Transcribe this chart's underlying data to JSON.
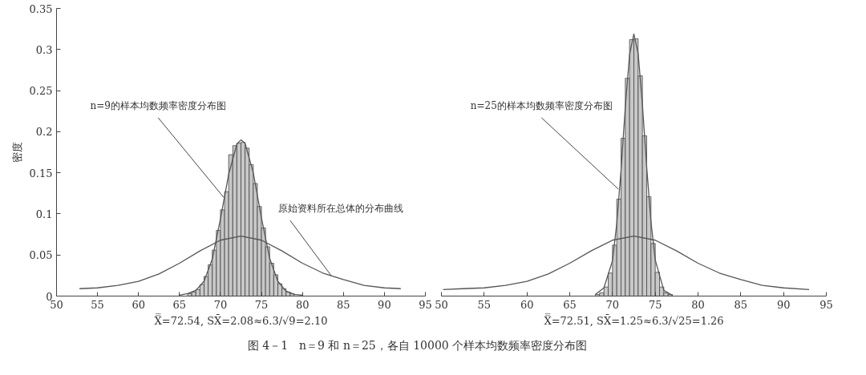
{
  "chart_data": [
    {
      "type": "histogram",
      "ylabel": "密度",
      "xlabel": "X̿=72.54, SX̄=2.08≈6.3/√9=2.10",
      "xlim": [
        50,
        95
      ],
      "xticks": [
        50,
        55,
        60,
        65,
        70,
        75,
        80,
        85,
        90,
        95
      ],
      "ylim": [
        0,
        0.35
      ],
      "yticks": [
        0,
        0.05,
        0.1,
        0.15,
        0.2,
        0.25,
        0.3,
        0.35
      ],
      "grid": false,
      "color": "#c8c8c8",
      "bins": [
        65,
        65.5,
        66,
        66.5,
        67,
        67.5,
        68,
        68.5,
        69,
        69.5,
        70,
        70.5,
        71,
        71.5,
        72,
        72.5,
        73,
        73.5,
        74,
        74.5,
        75,
        75.5,
        76,
        76.5,
        77,
        77.5,
        78,
        78.5,
        79,
        79.5,
        80
      ],
      "values": [
        null,
        null,
        0.003,
        0.005,
        0.008,
        0.014,
        0.024,
        0.038,
        0.056,
        0.08,
        0.105,
        0.127,
        0.172,
        0.183,
        0.186,
        0.187,
        0.18,
        0.16,
        0.137,
        0.109,
        0.083,
        0.06,
        0.04,
        0.026,
        0.015,
        0.009,
        0.005,
        0.003,
        null,
        null
      ],
      "series": [
        {
          "type": "line",
          "color": "#555555",
          "x": [
            65,
            66,
            67,
            68,
            69,
            70,
            71,
            72,
            72.5,
            73,
            74,
            75,
            76,
            77,
            78,
            79,
            80
          ],
          "values": [
            0.001,
            0.003,
            0.007,
            0.018,
            0.045,
            0.094,
            0.148,
            0.185,
            0.19,
            0.186,
            0.15,
            0.095,
            0.046,
            0.018,
            0.006,
            0.002,
            0.001
          ]
        },
        {
          "type": "line",
          "color": "#555555",
          "x": [
            52.8,
            55,
            57.5,
            60,
            62.5,
            65,
            67.5,
            70,
            72.5,
            75,
            77.5,
            80,
            82.5,
            85,
            87.5,
            90,
            92
          ],
          "values": [
            0.009,
            0.01,
            0.013,
            0.018,
            0.027,
            0.04,
            0.055,
            0.068,
            0.073,
            0.068,
            0.055,
            0.04,
            0.028,
            0.02,
            0.013,
            0.01,
            0.009
          ]
        }
      ],
      "annotations": [
        {
          "text": "n=9的样本均数频率密度分布图",
          "x": 70.4,
          "y": 0.12
        },
        {
          "text": "原始资料所在总体的分布曲线",
          "x": 83.5,
          "y": 0.025
        }
      ]
    },
    {
      "type": "histogram",
      "xlabel": "X̿=72.51, SX̄=1.25≈6.3/√25=1.26",
      "xlim": [
        50,
        95
      ],
      "xticks": [
        50,
        55,
        60,
        65,
        70,
        75,
        80,
        85,
        90,
        95
      ],
      "ylim": [
        0,
        0.35
      ],
      "yticks": [
        0,
        0.05,
        0.1,
        0.15,
        0.2,
        0.25,
        0.3,
        0.35
      ],
      "tick_labels": "x",
      "grid": false,
      "color": "#c8c8c8",
      "bins": [
        67.5,
        68,
        68.5,
        69,
        69.5,
        70,
        70.5,
        71,
        71.5,
        72,
        72.5,
        73,
        73.5,
        74,
        74.5,
        75,
        75.5,
        76,
        76.5,
        77,
        77.5
      ],
      "values": [
        null,
        0.002,
        0.004,
        0.011,
        0.028,
        0.062,
        0.118,
        0.192,
        0.265,
        0.312,
        0.313,
        0.268,
        0.195,
        0.121,
        0.064,
        0.029,
        0.011,
        0.004,
        0.002,
        null
      ],
      "series": [
        {
          "type": "line",
          "color": "#555555",
          "x": [
            68,
            69,
            70,
            70.5,
            71,
            71.5,
            72,
            72.5,
            73,
            73.5,
            74,
            74.5,
            75,
            76,
            77
          ],
          "values": [
            0.002,
            0.01,
            0.043,
            0.088,
            0.153,
            0.23,
            0.294,
            0.319,
            0.295,
            0.233,
            0.157,
            0.09,
            0.044,
            0.007,
            0.001
          ]
        },
        {
          "type": "line",
          "color": "#555555",
          "x": [
            50.2,
            52.5,
            55,
            57.5,
            60,
            62.5,
            65,
            67.5,
            70,
            72.5,
            75,
            77.5,
            80,
            82.5,
            85,
            87.5,
            90,
            93
          ],
          "values": [
            0.008,
            0.009,
            0.01,
            0.013,
            0.018,
            0.027,
            0.04,
            0.055,
            0.068,
            0.073,
            0.068,
            0.055,
            0.04,
            0.028,
            0.02,
            0.013,
            0.01,
            0.008
          ]
        }
      ],
      "annotations": [
        {
          "text": "n=25的样本均数频率密度分布图",
          "x": 70.7,
          "y": 0.13
        }
      ]
    },
    {
      "type": "other",
      "title": "图 4－1　n＝9 和 n＝25，各自 10000 个样本均数频率密度分布图"
    }
  ]
}
